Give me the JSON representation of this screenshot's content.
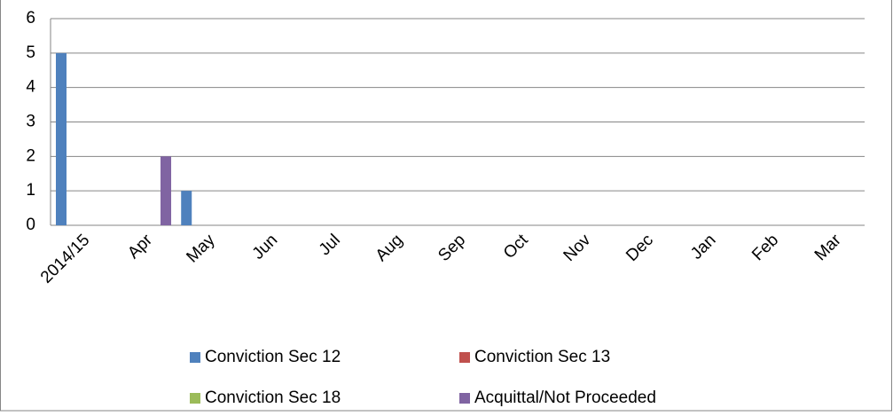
{
  "chart_data": {
    "type": "bar",
    "categories": [
      "2014/15",
      "Apr",
      "May",
      "Jun",
      "Jul",
      "Aug",
      "Sep",
      "Oct",
      "Nov",
      "Dec",
      "Jan",
      "Feb",
      "Mar"
    ],
    "series": [
      {
        "name": "Conviction Sec 12",
        "color": "#4f81bd",
        "values": [
          5,
          0,
          1,
          0,
          0,
          0,
          0,
          0,
          0,
          0,
          0,
          0,
          0
        ]
      },
      {
        "name": "Conviction Sec 13",
        "color": "#c0504d",
        "values": [
          0,
          0,
          0,
          0,
          0,
          0,
          0,
          0,
          0,
          0,
          0,
          0,
          0
        ]
      },
      {
        "name": "Conviction Sec 18",
        "color": "#9bbb59",
        "values": [
          0,
          0,
          0,
          0,
          0,
          0,
          0,
          0,
          0,
          0,
          0,
          0,
          0
        ]
      },
      {
        "name": "Acquittal/Not Proceeded",
        "color": "#8064a2",
        "values": [
          0,
          2,
          0,
          0,
          0,
          0,
          0,
          0,
          0,
          0,
          0,
          0,
          0
        ]
      }
    ],
    "ylim": [
      0,
      6
    ],
    "yticks": [
      0,
      1,
      2,
      3,
      4,
      5,
      6
    ],
    "grid": true
  }
}
